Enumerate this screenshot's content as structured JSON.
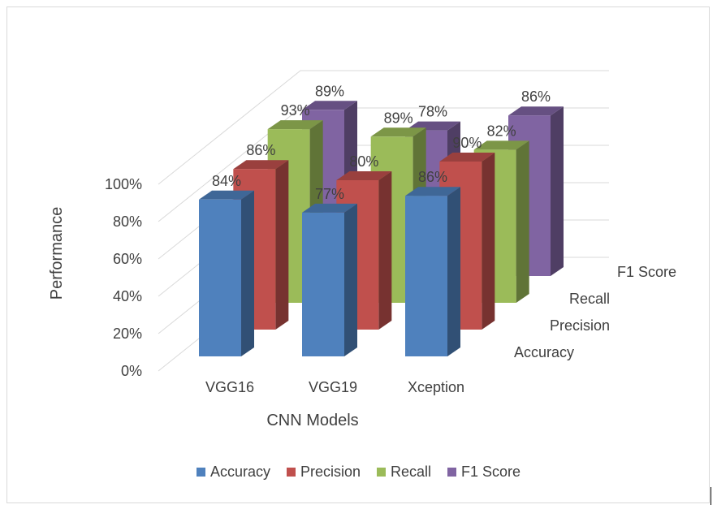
{
  "chart_data": {
    "type": "bar",
    "subtype": "3d-clustered-column",
    "categories": [
      "VGG16",
      "VGG19",
      "Xception"
    ],
    "series": [
      {
        "name": "Accuracy",
        "values": [
          84,
          77,
          86
        ],
        "labels": [
          "84%",
          "77%",
          "86%"
        ],
        "color": "#4f81bd"
      },
      {
        "name": "Precision",
        "values": [
          86,
          80,
          90
        ],
        "labels": [
          "86%",
          "80%",
          "90%"
        ],
        "color": "#c0504d"
      },
      {
        "name": "Recall",
        "values": [
          93,
          89,
          82
        ],
        "labels": [
          "93%",
          "89%",
          "82%"
        ],
        "color": "#9bbb59"
      },
      {
        "name": "F1 Score",
        "values": [
          89,
          78,
          86
        ],
        "labels": [
          "89%",
          "78%",
          "86%"
        ],
        "color": "#8064a2"
      }
    ],
    "xlabel": "CNN Models",
    "ylabel": "Performance",
    "yticks": [
      "0%",
      "20%",
      "40%",
      "60%",
      "80%",
      "100%"
    ],
    "ylim": [
      0,
      100
    ],
    "grid": true,
    "legend": "bottom"
  }
}
